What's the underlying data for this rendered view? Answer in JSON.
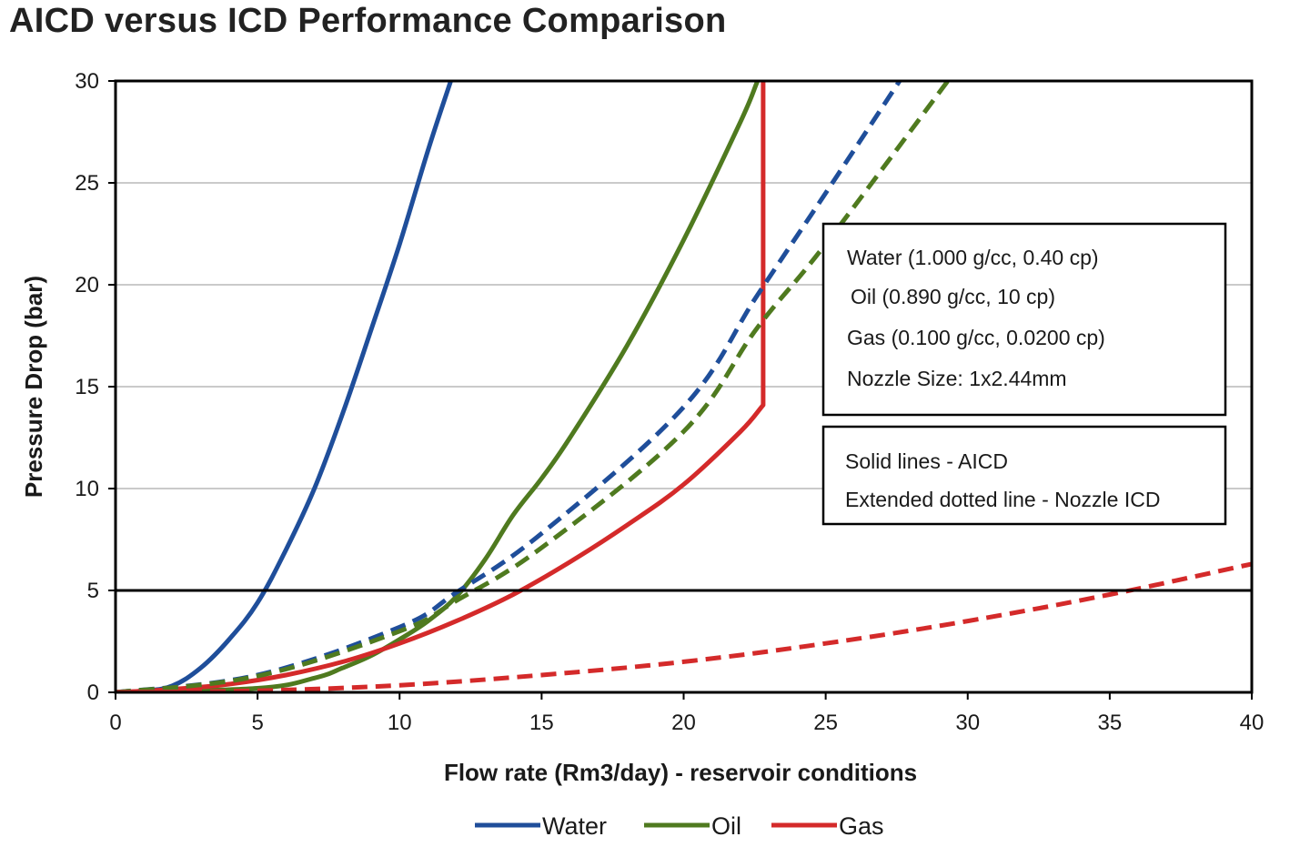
{
  "chart_data": {
    "type": "line",
    "title": "AICD versus ICD Performance Comparison",
    "xlabel": "Flow rate (Rm3/day) - reservoir conditions",
    "ylabel": "Pressure Drop (bar)",
    "xlim": [
      0,
      40
    ],
    "ylim": [
      0,
      30
    ],
    "x_ticks": [
      0,
      5,
      10,
      15,
      20,
      25,
      30,
      35,
      40
    ],
    "y_ticks": [
      0,
      5,
      10,
      15,
      20,
      25,
      30
    ],
    "grid": "horizontal",
    "reference_line": {
      "y": 5
    },
    "legend_position": "bottom",
    "series": [
      {
        "name": "Water",
        "style": "solid",
        "color": "#1f4e9a",
        "x": [
          0,
          1,
          2,
          3,
          4,
          5,
          6,
          7,
          8,
          9,
          10,
          11,
          11.8
        ],
        "y": [
          0,
          0.07,
          0.32,
          1.2,
          2.6,
          4.4,
          7.0,
          10.0,
          13.7,
          17.8,
          22.0,
          26.6,
          30
        ]
      },
      {
        "name": "Oil",
        "style": "solid",
        "color": "#4f7a1f",
        "x": [
          0,
          5,
          7,
          8,
          9,
          10,
          11,
          12,
          13,
          14,
          15,
          16,
          18,
          20,
          22,
          22.6
        ],
        "y": [
          0,
          0.2,
          0.7,
          1.2,
          1.8,
          2.6,
          3.5,
          4.7,
          6.5,
          8.7,
          10.5,
          12.5,
          17.0,
          22.2,
          28.0,
          30
        ]
      },
      {
        "name": "Gas",
        "style": "solid",
        "color": "#d42a2a",
        "x": [
          0,
          2,
          4,
          6,
          8,
          10,
          12,
          14,
          16,
          18,
          20,
          22,
          22.8,
          22.8
        ],
        "y": [
          0,
          0.15,
          0.4,
          0.85,
          1.5,
          2.4,
          3.5,
          4.8,
          6.4,
          8.2,
          10.2,
          12.8,
          14.1,
          30
        ]
      },
      {
        "name": "Water",
        "style": "dashed",
        "color": "#1f4e9a",
        "x": [
          0,
          5,
          10,
          12,
          15,
          20,
          22.6,
          25,
          27.6
        ],
        "y": [
          0,
          0.85,
          3.2,
          4.9,
          7.8,
          14.0,
          19.5,
          24.5,
          30
        ]
      },
      {
        "name": "Oil",
        "style": "dashed",
        "color": "#4f7a1f",
        "x": [
          0,
          5,
          10,
          12,
          15,
          20,
          22.6,
          25,
          29.3
        ],
        "y": [
          0,
          0.8,
          3.0,
          4.5,
          7.1,
          12.8,
          17.9,
          22.0,
          30
        ]
      },
      {
        "name": "Gas",
        "style": "dashed",
        "color": "#d42a2a",
        "x": [
          0,
          5,
          10,
          15,
          20,
          25,
          30,
          35,
          40
        ],
        "y": [
          0,
          0.08,
          0.35,
          0.85,
          1.5,
          2.4,
          3.5,
          4.8,
          6.3
        ]
      }
    ],
    "legend": [
      {
        "name": "Water",
        "color": "#1f4e9a"
      },
      {
        "name": "Oil",
        "color": "#4f7a1f"
      },
      {
        "name": "Gas",
        "color": "#d42a2a"
      }
    ],
    "annotations": {
      "fluid_box": [
        "Water (1.000 g/cc, 0.40 cp)",
        "Oil (0.890 g/cc, 10 cp)",
        "Gas (0.100 g/cc, 0.0200 cp)",
        "Nozzle Size: 1x2.44mm"
      ],
      "style_box": [
        "Solid lines - AICD",
        "Extended dotted line - Nozzle ICD"
      ]
    }
  }
}
